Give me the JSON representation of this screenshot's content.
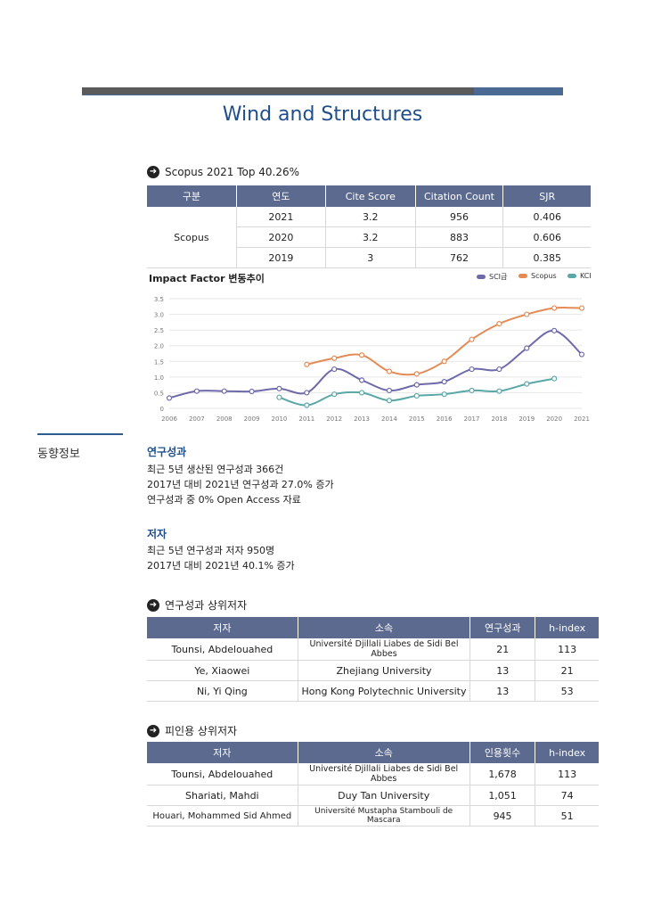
{
  "title": "Wind and Structures",
  "scopus_section": {
    "heading": "Scopus 2021 Top 40.26%",
    "headers": [
      "구분",
      "연도",
      "Cite Score",
      "Citation Count",
      "SJR"
    ],
    "group_label": "Scopus",
    "rows": [
      [
        "2021",
        "3.2",
        "956",
        "0.406"
      ],
      [
        "2020",
        "3.2",
        "883",
        "0.606"
      ],
      [
        "2019",
        "3",
        "762",
        "0.385"
      ]
    ]
  },
  "chart_data": {
    "type": "line",
    "title": "Impact Factor 변동추이",
    "x": [
      2006,
      2007,
      2008,
      2009,
      2010,
      2011,
      2012,
      2013,
      2014,
      2015,
      2016,
      2017,
      2018,
      2019,
      2020,
      2021
    ],
    "ylim": [
      0,
      3.5
    ],
    "yticks": [
      "0",
      "0.5",
      "1.0",
      "1.5",
      "2.0",
      "2.5",
      "3.0",
      "3.5"
    ],
    "legend_position": "top-right",
    "series": [
      {
        "name": "SCI급",
        "color": "#6e6aaa",
        "values": [
          0.33,
          0.55,
          0.55,
          0.54,
          0.63,
          0.5,
          1.25,
          0.9,
          0.57,
          0.75,
          0.85,
          1.25,
          1.25,
          1.92,
          2.48,
          1.72
        ]
      },
      {
        "name": "Scopus",
        "color": "#e48a55",
        "values": [
          null,
          null,
          null,
          null,
          null,
          1.4,
          1.6,
          1.7,
          1.18,
          1.1,
          1.5,
          2.2,
          2.7,
          3.0,
          3.2,
          3.2
        ]
      },
      {
        "name": "KCI",
        "color": "#5aa7a8",
        "values": [
          null,
          null,
          null,
          null,
          0.35,
          0.1,
          0.45,
          0.5,
          0.25,
          0.4,
          0.45,
          0.57,
          0.55,
          0.78,
          0.95,
          null
        ]
      }
    ]
  },
  "side_label": "동향정보",
  "research": {
    "heading": "연구성과",
    "lines": [
      "최근 5년 생산된 연구성과 366건",
      "2017년 대비 2021년 연구성과 27.0% 증가",
      "연구성과 중 0% Open Access 자료"
    ]
  },
  "authors": {
    "heading": "저자",
    "lines": [
      "최근 5년 연구성과 저자 950명",
      "2017년 대비 2021년 40.1% 증가"
    ]
  },
  "top_authors": {
    "heading": "연구성과 상위저자",
    "headers": [
      "저자",
      "소속",
      "연구성과",
      "h-index"
    ],
    "rows": [
      [
        "Tounsi, Abdelouahed",
        "Université Djillali Liabes de Sidi Bel Abbes",
        "21",
        "113"
      ],
      [
        "Ye, Xiaowei",
        "Zhejiang University",
        "13",
        "21"
      ],
      [
        "Ni, Yi Qing",
        "Hong Kong Polytechnic University",
        "13",
        "53"
      ]
    ]
  },
  "cited_authors": {
    "heading": "피인용 상위저자",
    "headers": [
      "저자",
      "소속",
      "인용횟수",
      "h-index"
    ],
    "rows": [
      [
        "Tounsi, Abdelouahed",
        "Université Djillali Liabes de Sidi Bel Abbes",
        "1,678",
        "113"
      ],
      [
        "Shariati, Mahdi",
        "Duy Tan University",
        "1,051",
        "74"
      ],
      [
        "Houari, Mohammed Sid Ahmed",
        "Université Mustapha Stambouli de Mascara",
        "945",
        "51"
      ]
    ]
  }
}
